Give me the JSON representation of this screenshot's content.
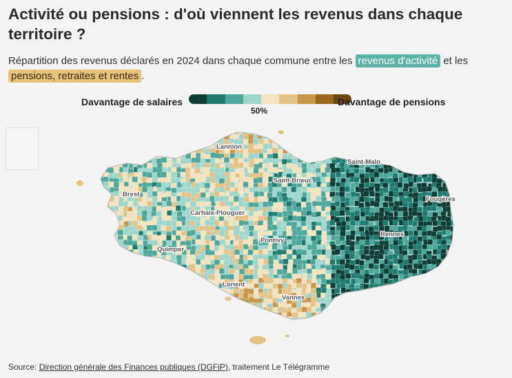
{
  "title": "Activité ou pensions : d'où viennent les revenus dans chaque territoire ?",
  "subtitle": {
    "part1": "Répartition des revenus déclarés en 2024 dans chaque commune entre les ",
    "highlight_activity": "revenus d'activité",
    "part2": " et les ",
    "highlight_pensions": "pensions, retraites et rentes",
    "part3": "."
  },
  "legend": {
    "left_label": "Davantage de salaires",
    "right_label": "Davantage de pensions",
    "mid_label": "50%",
    "colors": [
      "#0e3d35",
      "#1f7b70",
      "#4ea79a",
      "#9fd6cc",
      "#f3e3bf",
      "#e6c285",
      "#c9974a",
      "#9c6820",
      "#6b4610"
    ]
  },
  "map": {
    "cities": [
      "Lannion",
      "Saint-Malo",
      "Brest",
      "Saint-Brieuc",
      "Fougères",
      "Carhaix-Plouguer",
      "Rennes",
      "Pontivy",
      "Quimper",
      "Lorient",
      "Vannes"
    ]
  },
  "source": {
    "prefix": "Source: ",
    "link": "Direction générale des Finances publiques (DGFiP)",
    "suffix": ", traitement Le Télégramme"
  }
}
